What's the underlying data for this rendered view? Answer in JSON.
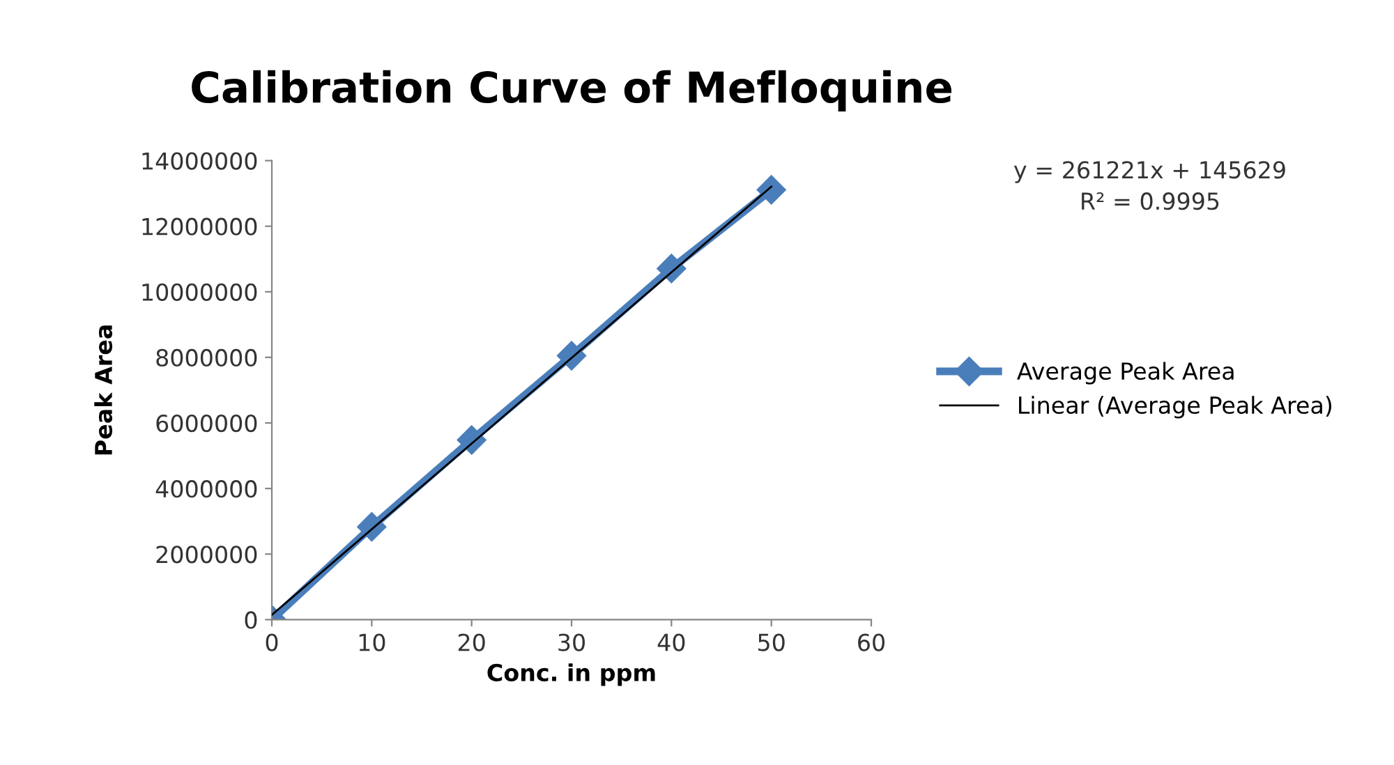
{
  "chart_data": {
    "type": "line",
    "title": "Calibration Curve of Mefloquine",
    "xlabel": "Conc. in ppm",
    "ylabel": "Peak Area",
    "x": [
      0,
      10,
      20,
      30,
      40,
      50
    ],
    "series": [
      {
        "name": "Average Peak Area",
        "color": "#4a7ebb",
        "values": [
          0,
          2830000,
          5480000,
          8050000,
          10710000,
          13110000
        ],
        "marker": "diamond"
      },
      {
        "name": "Linear (Average Peak Area)",
        "color": "#000000",
        "x": [
          0,
          50
        ],
        "values": [
          145629,
          13206679
        ],
        "marker": "none"
      }
    ],
    "xlim": [
      0,
      60
    ],
    "xticks": [
      0,
      10,
      20,
      30,
      40,
      50,
      60
    ],
    "ylim": [
      0,
      14000000
    ],
    "yticks": [
      0,
      2000000,
      4000000,
      6000000,
      8000000,
      10000000,
      12000000,
      14000000
    ],
    "grid": false,
    "legend": "right",
    "annotations": [
      "y = 261221x + 145629\nR² = 0.9995"
    ]
  }
}
